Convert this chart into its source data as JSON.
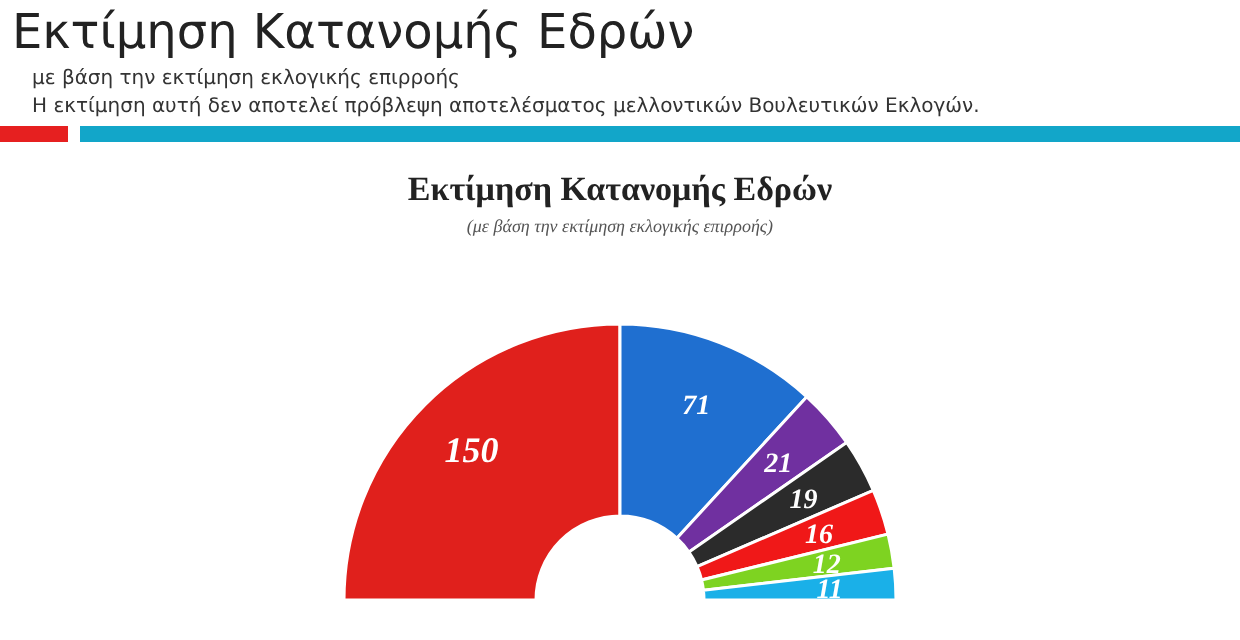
{
  "chart_data": {
    "type": "donut",
    "title": "Εκτίμηση Κατανομής Εδρών",
    "subtitle": "(με βάση την εκτίμηση εκλογικής επιρροής)",
    "annotations": [
      "Εκτίμηση Κατανομής Εδρών",
      "με βάση την εκτίμηση εκλογικής επιρροής",
      "Η εκτίμηση αυτή δεν αποτελεί πρόβλεψη αποτελέσματος μελλοντικών Βουλευτικών Εκλογών."
    ],
    "categories": [
      null,
      null,
      null,
      null,
      null,
      null,
      null
    ],
    "values": [
      150,
      71,
      21,
      19,
      16,
      12,
      11
    ],
    "colors": [
      "#e0201c",
      "#1f6fd0",
      "#7030a0",
      "#2b2b2b",
      "#f01818",
      "#7ed321",
      "#1ab0e8"
    ],
    "data_labels": true
  }
}
